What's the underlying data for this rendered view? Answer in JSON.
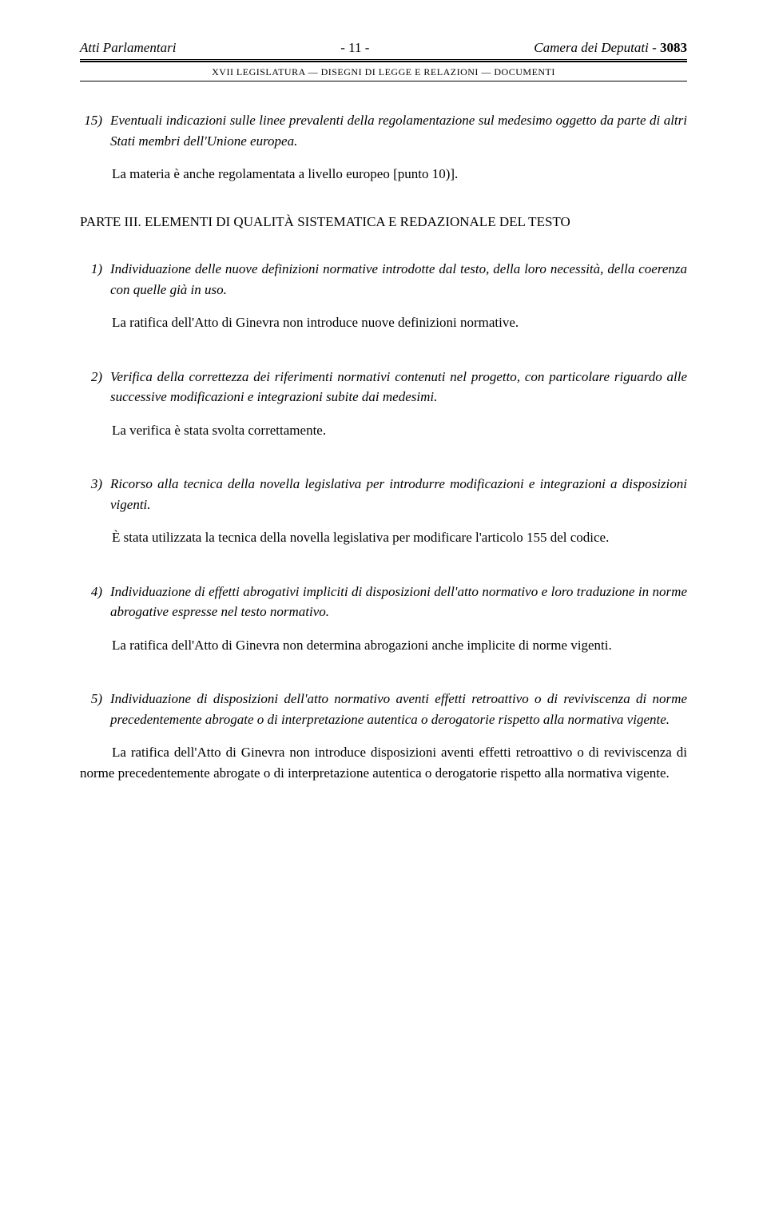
{
  "header": {
    "left": "Atti Parlamentari",
    "center": "- 11 -",
    "right_italic": "Camera dei Deputati -",
    "right_bold": "3083",
    "subheader": "XVII LEGISLATURA — DISEGNI DI LEGGE E RELAZIONI — DOCUMENTI"
  },
  "item15": {
    "num": "15)",
    "text": "Eventuali indicazioni sulle linee prevalenti della regolamentazione sul medesimo oggetto da parte di altri Stati membri dell'Unione europea."
  },
  "para15": "La materia è anche regolamentata a livello europeo [punto 10)].",
  "parte3": {
    "label": "PARTE III.",
    "title": "ELEMENTI DI QUALITÀ SISTEMATICA E REDAZIONALE DEL TESTO"
  },
  "q1": {
    "num": "1)",
    "text": "Individuazione delle nuove definizioni normative introdotte dal testo, della loro necessità, della coerenza con quelle già in uso."
  },
  "a1": "La ratifica dell'Atto di Ginevra non introduce nuove definizioni normative.",
  "q2": {
    "num": "2)",
    "text": "Verifica della correttezza dei riferimenti normativi contenuti nel progetto, con particolare riguardo alle successive modificazioni e integrazioni subite dai medesimi."
  },
  "a2": "La verifica è stata svolta correttamente.",
  "q3": {
    "num": "3)",
    "text": "Ricorso alla tecnica della novella legislativa per introdurre modificazioni e integrazioni a disposizioni vigenti."
  },
  "a3": "È stata utilizzata la tecnica della novella legislativa per modificare l'articolo 155 del codice.",
  "q4": {
    "num": "4)",
    "text": "Individuazione di effetti abrogativi impliciti di disposizioni dell'atto normativo e loro traduzione in norme abrogative espresse nel testo normativo."
  },
  "a4": "La ratifica dell'Atto di Ginevra non determina abrogazioni anche implicite di norme vigenti.",
  "q5": {
    "num": "5)",
    "text": "Individuazione di disposizioni dell'atto normativo aventi effetti retroattivo o di reviviscenza di norme precedentemente abrogate o di interpretazione autentica o derogatorie rispetto alla normativa vigente."
  },
  "a5": "La ratifica dell'Atto di Ginevra non introduce disposizioni aventi effetti retroattivo o di reviviscenza di norme precedentemente abrogate o di interpretazione autentica o derogatorie rispetto alla normativa vigente."
}
